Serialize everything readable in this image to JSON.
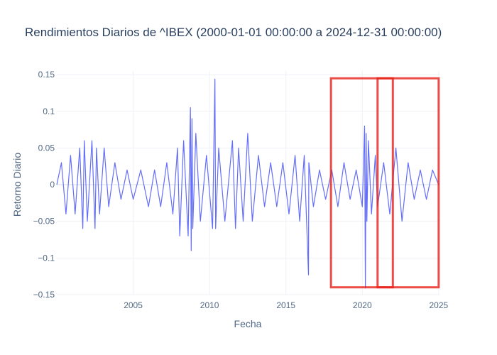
{
  "chart_data": {
    "type": "line",
    "title": "Rendimientos Diarios de ^IBEX (2000-01-01 00:00:00 a 2024-12-31 00:00:00)",
    "xlabel": "Fecha",
    "ylabel": "Retorno Diario",
    "xlim": [
      2000.0,
      2025.1
    ],
    "ylim": [
      -0.15,
      0.155
    ],
    "xticks": [
      2005,
      2010,
      2015,
      2020,
      2025
    ],
    "xtick_labels": [
      "2005",
      "2010",
      "2015",
      "2020",
      "2025"
    ],
    "yticks": [
      0.15,
      0.1,
      0.05,
      0,
      -0.05,
      -0.1,
      -0.15
    ],
    "ytick_labels": [
      "0.15",
      "0.1",
      "0.05",
      "0",
      "−0.05",
      "−0.1",
      "−0.15"
    ],
    "grid": true,
    "series": [
      {
        "color": "#636efa",
        "x": [
          2000.0,
          2000.3,
          2000.6,
          2000.9,
          2001.2,
          2001.5,
          2001.7,
          2001.8,
          2002.0,
          2002.3,
          2002.5,
          2002.6,
          2002.8,
          2003.1,
          2003.4,
          2003.8,
          2004.2,
          2004.6,
          2005.0,
          2005.5,
          2006.0,
          2006.4,
          2006.8,
          2007.2,
          2007.6,
          2007.9,
          2008.05,
          2008.3,
          2008.6,
          2008.75,
          2008.8,
          2008.85,
          2008.9,
          2009.1,
          2009.4,
          2009.8,
          2010.2,
          2010.35,
          2010.4,
          2010.6,
          2011.0,
          2011.5,
          2011.7,
          2011.9,
          2012.2,
          2012.5,
          2012.8,
          2013.2,
          2013.6,
          2014.0,
          2014.4,
          2014.8,
          2015.2,
          2015.6,
          2015.9,
          2016.2,
          2016.48,
          2016.5,
          2016.8,
          2017.2,
          2017.6,
          2018.0,
          2018.4,
          2018.8,
          2019.2,
          2019.6,
          2020.0,
          2020.15,
          2020.2,
          2020.25,
          2020.3,
          2020.4,
          2020.6,
          2020.85,
          2021.0,
          2021.4,
          2021.8,
          2022.2,
          2022.6,
          2023.0,
          2023.4,
          2023.8,
          2024.2,
          2024.6,
          2025.0
        ],
        "y": [
          0.0,
          0.03,
          -0.04,
          0.04,
          -0.04,
          0.05,
          -0.06,
          0.06,
          -0.05,
          0.06,
          -0.06,
          0.05,
          -0.04,
          0.05,
          -0.03,
          0.03,
          -0.02,
          0.02,
          -0.02,
          0.02,
          -0.03,
          0.02,
          -0.03,
          0.03,
          -0.04,
          0.05,
          -0.07,
          0.06,
          -0.07,
          0.105,
          -0.09,
          0.09,
          -0.06,
          0.07,
          -0.05,
          0.04,
          -0.06,
          0.144,
          -0.06,
          0.05,
          -0.05,
          0.06,
          -0.06,
          0.05,
          -0.05,
          0.07,
          -0.05,
          0.04,
          -0.03,
          0.03,
          -0.03,
          0.03,
          -0.04,
          0.04,
          -0.05,
          0.04,
          -0.123,
          0.03,
          -0.03,
          0.02,
          -0.02,
          0.02,
          -0.03,
          0.03,
          -0.02,
          0.02,
          -0.03,
          0.08,
          -0.141,
          0.07,
          -0.05,
          0.06,
          -0.04,
          0.04,
          -0.03,
          0.03,
          -0.04,
          0.05,
          -0.05,
          0.03,
          -0.02,
          0.02,
          -0.02,
          0.02,
          0.0
        ]
      }
    ],
    "highlight_boxes": [
      {
        "x": [
          2017.95,
          2025.0
        ],
        "y": [
          -0.14,
          0.145
        ],
        "color": "#e8201a"
      },
      {
        "x": [
          2021.0,
          2022.0
        ],
        "y": [
          -0.14,
          0.145
        ],
        "color": "#e8201a"
      }
    ]
  }
}
